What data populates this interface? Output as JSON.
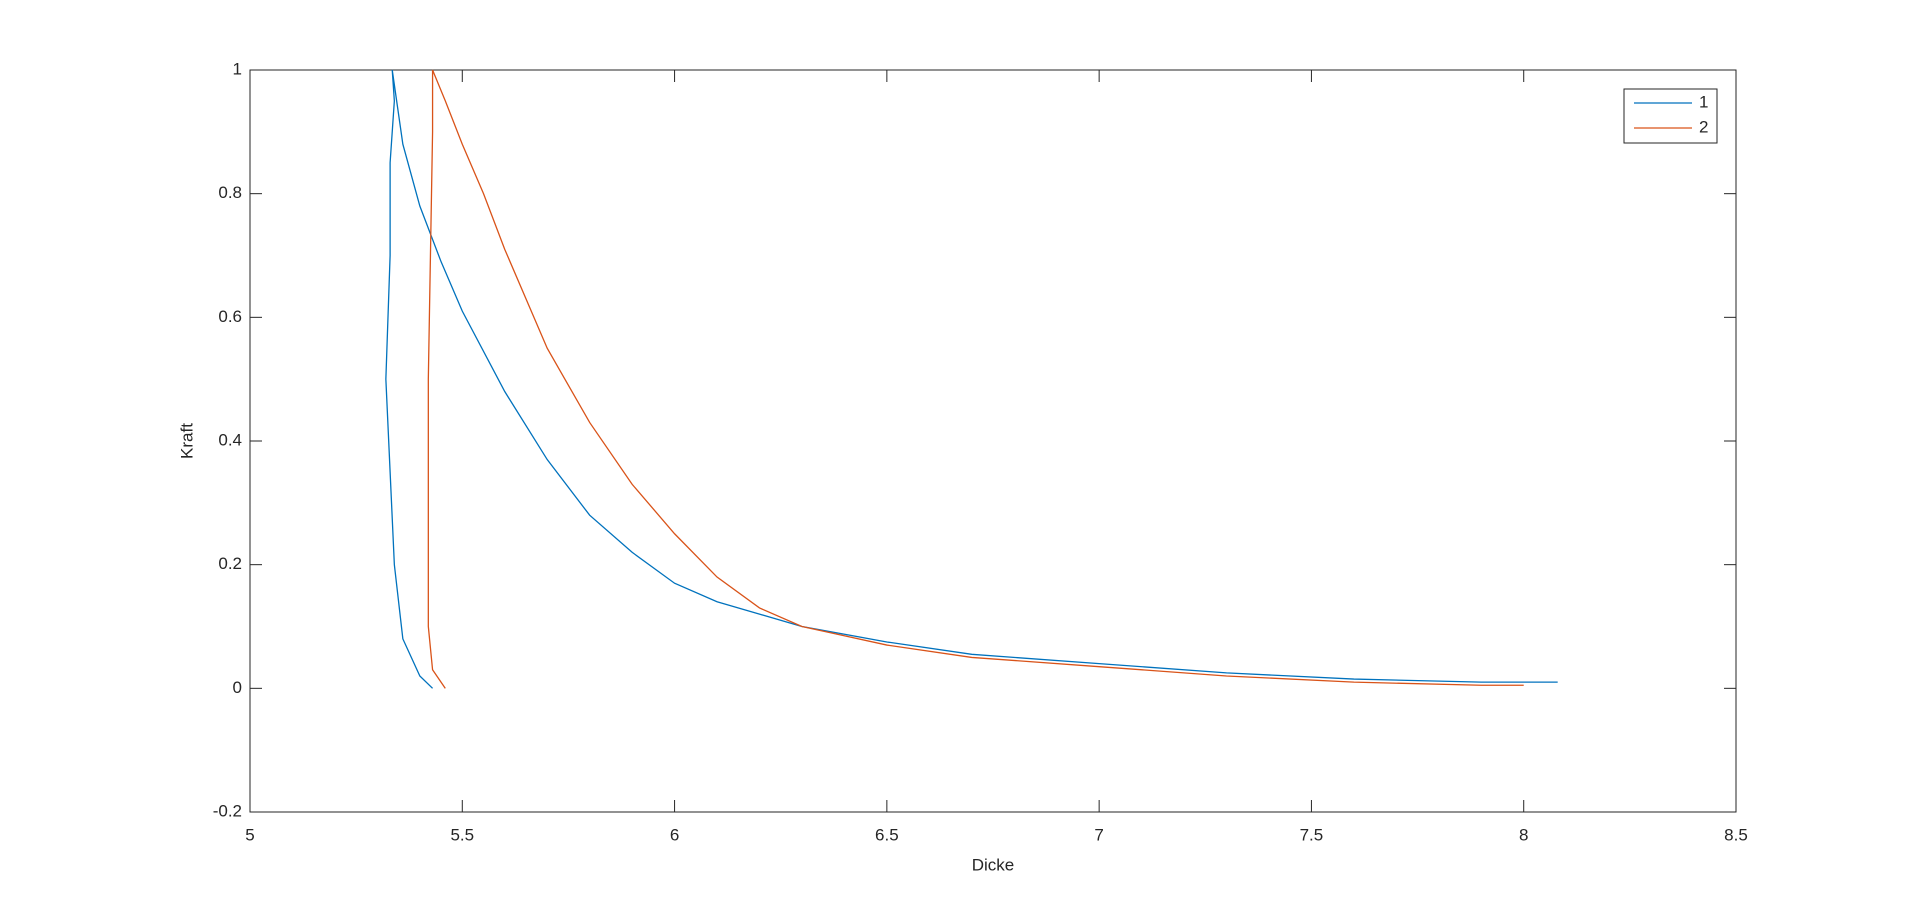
{
  "chart_data": {
    "type": "line",
    "xlabel": "Dicke",
    "ylabel": "Kraft",
    "xlim": [
      5,
      8.5
    ],
    "xticks": [
      5,
      5.5,
      6,
      6.5,
      7,
      7.5,
      8,
      8.5
    ],
    "ylim": [
      -0.2,
      1
    ],
    "yticks": [
      -0.2,
      0,
      0.2,
      0.4,
      0.6,
      0.8,
      1
    ],
    "legend": "top-right",
    "series": [
      {
        "name": "1",
        "color": "#0072BD",
        "x": [
          5.43,
          5.4,
          5.36,
          5.34,
          5.33,
          5.32,
          5.33,
          5.33,
          5.34,
          5.335,
          5.36,
          5.4,
          5.45,
          5.5,
          5.6,
          5.7,
          5.8,
          5.9,
          6.0,
          6.1,
          6.2,
          6.3,
          6.5,
          6.7,
          7.0,
          7.3,
          7.6,
          7.9,
          8.08
        ],
        "values": [
          0,
          0.02,
          0.08,
          0.2,
          0.35,
          0.5,
          0.7,
          0.85,
          0.95,
          1.0,
          0.88,
          0.78,
          0.69,
          0.61,
          0.48,
          0.37,
          0.28,
          0.22,
          0.17,
          0.14,
          0.12,
          0.1,
          0.075,
          0.055,
          0.04,
          0.025,
          0.015,
          0.01,
          0.01
        ]
      },
      {
        "name": "2",
        "color": "#D95319",
        "x": [
          5.46,
          5.43,
          5.42,
          5.42,
          5.42,
          5.425,
          5.43,
          5.43,
          5.46,
          5.5,
          5.55,
          5.6,
          5.7,
          5.8,
          5.9,
          6.0,
          6.1,
          6.2,
          6.3,
          6.5,
          6.7,
          7.0,
          7.3,
          7.6,
          7.9,
          8.0
        ],
        "values": [
          0,
          0.03,
          0.1,
          0.3,
          0.5,
          0.7,
          0.9,
          1.0,
          0.95,
          0.88,
          0.8,
          0.71,
          0.55,
          0.43,
          0.33,
          0.25,
          0.18,
          0.13,
          0.1,
          0.07,
          0.05,
          0.035,
          0.02,
          0.01,
          0.005,
          0.005
        ]
      }
    ]
  }
}
